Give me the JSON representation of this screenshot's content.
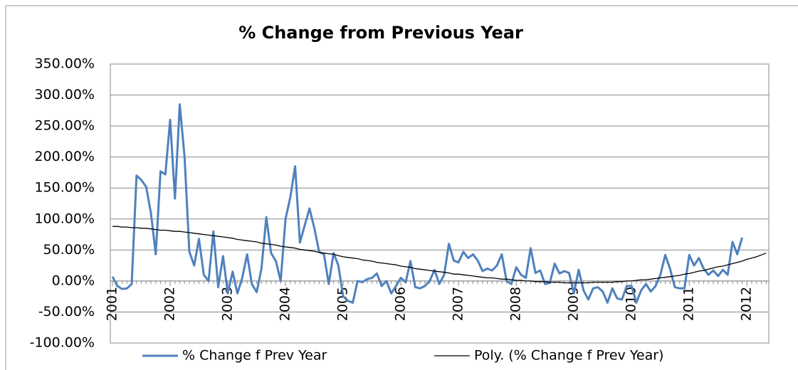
{
  "chart_data": {
    "type": "line",
    "title": "% Change from Previous Year",
    "categories": [
      "2001",
      null,
      null,
      null,
      null,
      null,
      null,
      null,
      null,
      null,
      null,
      null,
      "2002",
      null,
      null,
      null,
      null,
      null,
      null,
      null,
      null,
      null,
      null,
      null,
      "2003",
      null,
      null,
      null,
      null,
      null,
      null,
      null,
      null,
      null,
      null,
      null,
      "2004",
      null,
      null,
      null,
      null,
      null,
      null,
      null,
      null,
      null,
      null,
      null,
      "2005",
      null,
      null,
      null,
      null,
      null,
      null,
      null,
      null,
      null,
      null,
      null,
      "2006",
      null,
      null,
      null,
      null,
      null,
      null,
      null,
      null,
      null,
      null,
      null,
      "2007",
      null,
      null,
      null,
      null,
      null,
      null,
      null,
      null,
      null,
      null,
      null,
      "2008",
      null,
      null,
      null,
      null,
      null,
      null,
      null,
      null,
      null,
      null,
      null,
      "2009",
      null,
      null,
      null,
      null,
      null,
      null,
      null,
      null,
      null,
      null,
      null,
      "2010",
      null,
      null,
      null,
      null,
      null,
      null,
      null,
      null,
      null,
      null,
      null,
      "2011",
      null,
      null,
      null,
      null,
      null,
      null,
      null,
      null,
      null,
      null,
      null,
      "2012",
      null,
      null,
      null,
      null
    ],
    "series": [
      {
        "name": "% Change f Prev Year",
        "color": "#4f81bd",
        "width": 3,
        "values": [
          7,
          -8,
          -13,
          -12,
          -5,
          170,
          163,
          152,
          110,
          43,
          177,
          172,
          260,
          133,
          285,
          200,
          47,
          25,
          68,
          10,
          0,
          80,
          -10,
          40,
          -20,
          15,
          -20,
          5,
          43,
          -5,
          -18,
          20,
          103,
          45,
          32,
          0,
          100,
          135,
          185,
          62,
          90,
          117,
          85,
          47,
          43,
          -5,
          45,
          25,
          -25,
          -32,
          -35,
          0,
          -2,
          3,
          5,
          12,
          -8,
          0,
          -20,
          -8,
          5,
          -2,
          32,
          -10,
          -12,
          -8,
          0,
          18,
          -5,
          10,
          60,
          33,
          30,
          47,
          37,
          43,
          33,
          16,
          20,
          17,
          25,
          43,
          0,
          -5,
          22,
          10,
          5,
          53,
          13,
          17,
          -5,
          -3,
          28,
          12,
          16,
          13,
          -20,
          18,
          -15,
          -30,
          -12,
          -10,
          -17,
          -35,
          -12,
          -28,
          -30,
          -8,
          -8,
          -35,
          -15,
          -5,
          -17,
          -8,
          10,
          42,
          20,
          -10,
          -12,
          -12,
          42,
          25,
          37,
          20,
          10,
          17,
          8,
          18,
          10,
          63,
          43,
          70,
          null,
          null,
          null,
          null,
          null
        ]
      },
      {
        "name": "Poly. (% Change f Prev Year)",
        "color": "#000000",
        "width": 1.3,
        "values": [
          88,
          88,
          87,
          87,
          86,
          86,
          85,
          85,
          84,
          83,
          82,
          82,
          81,
          80,
          80,
          79,
          78,
          77,
          76,
          75,
          74,
          73,
          72,
          71,
          70,
          69,
          67,
          66,
          65,
          64,
          63,
          61,
          60,
          59,
          58,
          56,
          55,
          54,
          53,
          51,
          50,
          49,
          48,
          46,
          45,
          44,
          43,
          41,
          39,
          38,
          37,
          36,
          34,
          33,
          32,
          30,
          29,
          28,
          27,
          26,
          24,
          23,
          22,
          20,
          19,
          18,
          17,
          16,
          15,
          14,
          13,
          11,
          11,
          10,
          9,
          8,
          7,
          6,
          5,
          5,
          4,
          3,
          3,
          2,
          1,
          1,
          0,
          0,
          -1,
          -1,
          -1,
          -2,
          -2,
          -2,
          -3,
          -3,
          -3,
          -3,
          -3,
          -3,
          -2,
          -2,
          -2,
          -2,
          -2,
          -1,
          -1,
          0,
          0,
          1,
          2,
          2,
          3,
          4,
          5,
          6,
          7,
          8,
          9,
          11,
          12,
          14,
          16,
          17,
          19,
          21,
          23,
          24,
          26,
          28,
          30,
          32,
          35,
          37,
          39,
          42,
          45
        ]
      }
    ],
    "ylim": [
      -100,
      350
    ],
    "yticks": [
      {
        "value": -100,
        "label": "-100.00%"
      },
      {
        "value": -50,
        "label": "-50.00%"
      },
      {
        "value": 0,
        "label": "0.00%"
      },
      {
        "value": 50,
        "label": "50.00%"
      },
      {
        "value": 100,
        "label": "100.00%"
      },
      {
        "value": 150,
        "label": "150.00%"
      },
      {
        "value": 200,
        "label": "200.00%"
      },
      {
        "value": 250,
        "label": "250.00%"
      },
      {
        "value": 300,
        "label": "300.00%"
      },
      {
        "value": 350,
        "label": "350.00%"
      }
    ],
    "grid": true,
    "legend": "bottom"
  }
}
